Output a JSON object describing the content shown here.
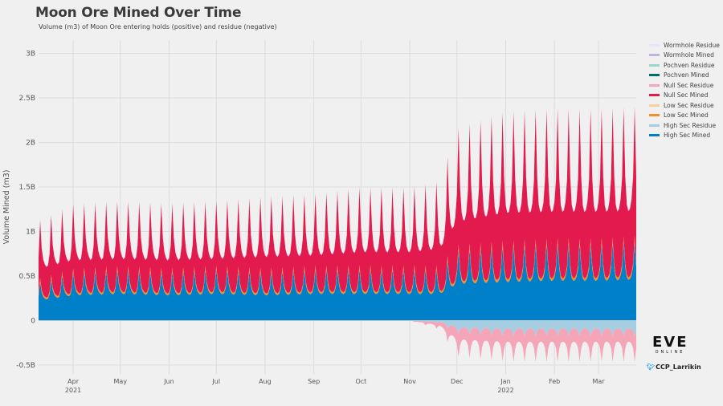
{
  "header": {
    "title": "Moon Ore Mined Over Time",
    "subtitle": "Volume (m3) of Moon Ore entering holds (positive) and residue (negative)"
  },
  "branding": {
    "logo_text": "EVE",
    "logo_subtext": "ONLINE",
    "twitter_handle": "CCP_Larrikin",
    "twitter_icon": "twitter-bird-icon"
  },
  "chart_data": {
    "type": "area",
    "title": "Moon Ore Mined Over Time",
    "subtitle": "Volume (m3) of Moon Ore entering holds (positive) and residue (negative)",
    "ylabel": "Volume Mined (m3)",
    "xlabel": "",
    "ylim": [
      -0.6,
      3.15
    ],
    "y_unit": "billion m3",
    "y_ticks": [
      {
        "value": -0.5,
        "label": "-0.5B"
      },
      {
        "value": 0,
        "label": "0"
      },
      {
        "value": 0.5,
        "label": "0.5B"
      },
      {
        "value": 1,
        "label": "1B"
      },
      {
        "value": 1.5,
        "label": "1.5B"
      },
      {
        "value": 2,
        "label": "2B"
      },
      {
        "value": 2.5,
        "label": "2.5B"
      },
      {
        "value": 3,
        "label": "3B"
      }
    ],
    "x_range": [
      "2021-03-10",
      "2022-03-25"
    ],
    "x_ticks": [
      {
        "date": "2021-04-01",
        "label": "Apr",
        "sublabel": "2021"
      },
      {
        "date": "2021-05-01",
        "label": "May",
        "sublabel": ""
      },
      {
        "date": "2021-06-01",
        "label": "Jun",
        "sublabel": ""
      },
      {
        "date": "2021-07-01",
        "label": "Jul",
        "sublabel": ""
      },
      {
        "date": "2021-08-01",
        "label": "Aug",
        "sublabel": ""
      },
      {
        "date": "2021-09-01",
        "label": "Sep",
        "sublabel": ""
      },
      {
        "date": "2021-10-01",
        "label": "Oct",
        "sublabel": ""
      },
      {
        "date": "2021-11-01",
        "label": "Nov",
        "sublabel": ""
      },
      {
        "date": "2021-12-01",
        "label": "Dec",
        "sublabel": ""
      },
      {
        "date": "2022-01-01",
        "label": "Jan",
        "sublabel": "2022"
      },
      {
        "date": "2022-02-01",
        "label": "Feb",
        "sublabel": ""
      },
      {
        "date": "2022-03-01",
        "label": "Mar",
        "sublabel": ""
      }
    ],
    "grid": true,
    "legend_position": "right",
    "x_dates": [
      "2021-03-10",
      "2021-04-01",
      "2021-05-01",
      "2021-06-01",
      "2021-07-01",
      "2021-08-01",
      "2021-09-01",
      "2021-10-01",
      "2021-11-01",
      "2021-11-20",
      "2021-12-01",
      "2022-01-01",
      "2022-02-01",
      "2022-03-01",
      "2022-03-25"
    ],
    "series": [
      {
        "name": "Wormhole Residue",
        "color": "#e6e6fa",
        "kind": "residue",
        "values": [
          0,
          0,
          0,
          0,
          0,
          0,
          0,
          0,
          0,
          0,
          0,
          0,
          0,
          0,
          0
        ]
      },
      {
        "name": "Wormhole Mined",
        "color": "#c3b1e1",
        "kind": "mined",
        "values": [
          0.01,
          0.01,
          0.01,
          0.01,
          0.01,
          0.01,
          0.01,
          0.01,
          0.01,
          0.01,
          0.01,
          0.01,
          0.01,
          0.01,
          0.01
        ]
      },
      {
        "name": "Pochven Residue",
        "color": "#99d8c9",
        "kind": "residue",
        "values": [
          0,
          0,
          0,
          0,
          0,
          0,
          0,
          0,
          0,
          0,
          0,
          0,
          0,
          0,
          0
        ]
      },
      {
        "name": "Pochven Mined",
        "color": "#006d6f",
        "kind": "mined",
        "values": [
          0,
          0,
          0,
          0,
          0,
          0,
          0,
          0,
          0,
          0,
          0,
          0,
          0,
          0,
          0
        ]
      },
      {
        "name": "Null Sec Residue",
        "color": "#f4a6b8",
        "kind": "residue",
        "values": [
          0,
          0,
          0,
          0,
          0,
          0,
          0,
          0,
          0,
          -0.05,
          -0.18,
          -0.2,
          -0.2,
          -0.2,
          -0.2
        ]
      },
      {
        "name": "Null Sec Mined",
        "color": "#e31a4d",
        "kind": "mined",
        "values": [
          0.45,
          0.5,
          0.5,
          0.5,
          0.5,
          0.55,
          0.55,
          0.6,
          0.6,
          0.65,
          0.9,
          1.0,
          1.0,
          1.0,
          1.0
        ]
      },
      {
        "name": "Low Sec Residue",
        "color": "#f5cfa5",
        "kind": "residue",
        "values": [
          0,
          0,
          0,
          0,
          0,
          0,
          0,
          0,
          0,
          0,
          0,
          0,
          0,
          0,
          0
        ]
      },
      {
        "name": "Low Sec Mined",
        "color": "#f28e2b",
        "kind": "mined",
        "values": [
          0.03,
          0.03,
          0.03,
          0.03,
          0.03,
          0.03,
          0.03,
          0.03,
          0.03,
          0.03,
          0.04,
          0.04,
          0.04,
          0.04,
          0.04
        ]
      },
      {
        "name": "High Sec Residue",
        "color": "#a6cee3",
        "kind": "residue",
        "values": [
          0,
          0,
          0,
          0,
          0,
          0,
          0,
          0,
          0,
          -0.02,
          -0.1,
          -0.12,
          -0.12,
          -0.12,
          -0.12
        ]
      },
      {
        "name": "High Sec Mined",
        "color": "#0080c8",
        "kind": "mined",
        "values": [
          0.3,
          0.38,
          0.4,
          0.38,
          0.4,
          0.38,
          0.4,
          0.4,
          0.4,
          0.4,
          0.55,
          0.58,
          0.6,
          0.6,
          0.62
        ]
      }
    ]
  }
}
